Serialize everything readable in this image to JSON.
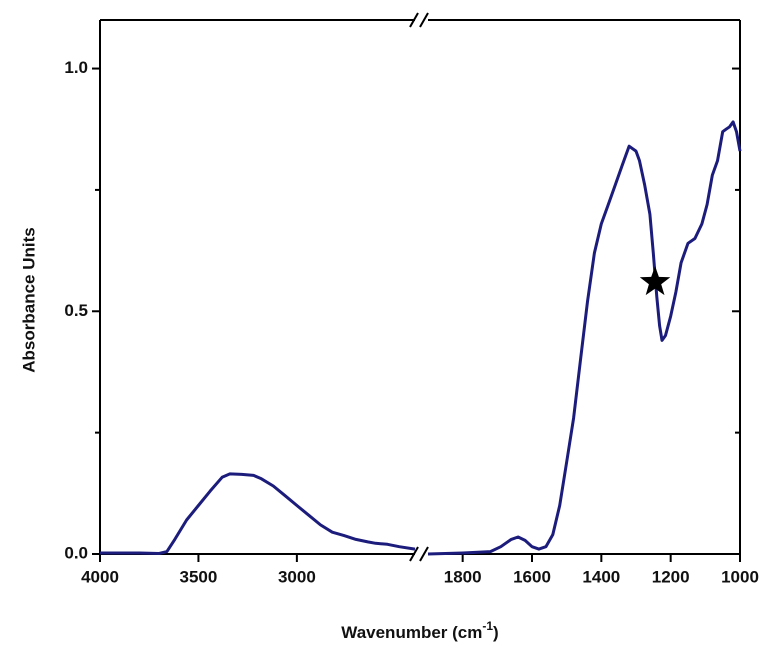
{
  "chart_data": {
    "type": "line",
    "ylabel": "Absorbance Units",
    "xlabel": "Wavenumber (cm",
    "xlabel_sup": "-1",
    "xlabel_end": ")",
    "color": "#1c1c7c",
    "ylim": [
      0,
      1.1
    ],
    "yticks": [
      {
        "value": 0,
        "label": "0.0"
      },
      0.5,
      {
        "value": 1,
        "label": "1.0"
      }
    ],
    "yminorticks": [
      0.25,
      0.75
    ],
    "panels": [
      {
        "xlim": [
          4000,
          2400
        ],
        "xticks": [
          4000,
          3500,
          3000
        ],
        "x": [
          4000,
          3800,
          3700,
          3660,
          3620,
          3560,
          3500,
          3440,
          3380,
          3340,
          3280,
          3220,
          3180,
          3120,
          3060,
          3000,
          2940,
          2880,
          2820,
          2760,
          2700,
          2640,
          2600,
          2540,
          2480,
          2400
        ],
        "values": [
          0.002,
          0.002,
          0.001,
          0.005,
          0.03,
          0.07,
          0.1,
          0.13,
          0.158,
          0.165,
          0.164,
          0.162,
          0.155,
          0.14,
          0.12,
          0.1,
          0.08,
          0.06,
          0.045,
          0.038,
          0.03,
          0.025,
          0.022,
          0.02,
          0.015,
          0.01
        ]
      },
      {
        "xlim": [
          1900,
          1000
        ],
        "xticks": [
          1800,
          1600,
          1400,
          1200,
          1000
        ],
        "x": [
          1900,
          1800,
          1720,
          1690,
          1660,
          1640,
          1620,
          1600,
          1580,
          1560,
          1540,
          1520,
          1500,
          1480,
          1460,
          1440,
          1420,
          1400,
          1380,
          1360,
          1340,
          1320,
          1300,
          1290,
          1275,
          1260,
          1250,
          1240,
          1232,
          1225,
          1215,
          1200,
          1185,
          1170,
          1150,
          1130,
          1110,
          1095,
          1080,
          1065,
          1050,
          1040,
          1030,
          1020,
          1010,
          1000
        ],
        "values": [
          0.0,
          0.002,
          0.005,
          0.015,
          0.03,
          0.035,
          0.028,
          0.015,
          0.01,
          0.015,
          0.04,
          0.1,
          0.19,
          0.28,
          0.4,
          0.52,
          0.62,
          0.68,
          0.72,
          0.76,
          0.8,
          0.84,
          0.83,
          0.81,
          0.76,
          0.7,
          0.62,
          0.53,
          0.47,
          0.44,
          0.45,
          0.49,
          0.54,
          0.6,
          0.64,
          0.65,
          0.68,
          0.72,
          0.78,
          0.81,
          0.87,
          0.875,
          0.88,
          0.89,
          0.87,
          0.83
        ]
      }
    ],
    "marker": {
      "panel": 1,
      "x": 1245,
      "y": 0.56
    }
  }
}
